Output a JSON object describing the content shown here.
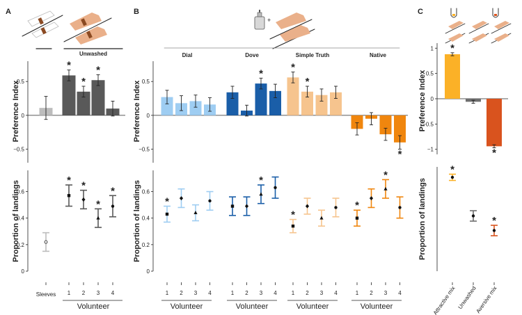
{
  "colors": {
    "sleeves": "#bdbdbd",
    "unwashed": "#595959",
    "dial": "#9ecdf2",
    "dove": "#1a5ea8",
    "simple_truth": "#f6c48e",
    "native": "#f0860e",
    "attractive": "#fbb127",
    "neutral": "#6e6e6e",
    "aversive": "#d9531e",
    "skin": "#eab08a"
  },
  "panels": {
    "A": {
      "label": "A",
      "header": "Unwashed",
      "xlabel": "Volunteer",
      "sleeves_label": "Sleeves"
    },
    "B": {
      "label": "B",
      "xlabel": "Volunteer"
    },
    "C": {
      "label": "C"
    }
  },
  "illustration": {
    "plus": "+"
  },
  "chart_data": [
    {
      "id": "A-top",
      "type": "bar",
      "panel": "A",
      "ylabel": "Preference Index",
      "ylim": [
        -0.7,
        0.8
      ],
      "yticks": [
        -0.5,
        0,
        0.5
      ],
      "tick_labels": [
        "−0.5",
        "0",
        "0.5"
      ],
      "bars": [
        {
          "label": "Sleeves",
          "value": 0.11,
          "err": 0.17,
          "star": false,
          "color": "sleeves"
        },
        {
          "label": "1",
          "value": 0.59,
          "err": 0.08,
          "star": true,
          "color": "unwashed"
        },
        {
          "label": "2",
          "value": 0.35,
          "err": 0.08,
          "star": true,
          "color": "unwashed"
        },
        {
          "label": "3",
          "value": 0.52,
          "err": 0.08,
          "star": true,
          "color": "unwashed"
        },
        {
          "label": "4",
          "value": 0.1,
          "err": 0.11,
          "star": false,
          "color": "unwashed"
        }
      ]
    },
    {
      "id": "A-bottom",
      "type": "errorbar",
      "panel": "A",
      "ylabel": "Proportion of landings",
      "ylim": [
        0,
        0.76
      ],
      "yticks": [
        0,
        0.2,
        0.4,
        0.6
      ],
      "tick_labels": [
        "0",
        "0.2",
        "0.4",
        "0.6"
      ],
      "points": [
        {
          "label": "Sleeves",
          "value": 0.22,
          "err": 0.07,
          "star": false,
          "color": "sleeves",
          "marker": "circle-open"
        },
        {
          "label": "1",
          "value": 0.57,
          "err": 0.08,
          "star": true,
          "color": "unwashed",
          "marker": "square"
        },
        {
          "label": "2",
          "value": 0.54,
          "err": 0.07,
          "star": true,
          "color": "unwashed",
          "marker": "diamond"
        },
        {
          "label": "3",
          "value": 0.4,
          "err": 0.07,
          "star": true,
          "color": "unwashed",
          "marker": "triangle"
        },
        {
          "label": "4",
          "value": 0.49,
          "err": 0.08,
          "star": true,
          "color": "unwashed",
          "marker": "circle"
        }
      ]
    },
    {
      "id": "B-top",
      "type": "bar",
      "panel": "B",
      "ylabel": "Preference Index",
      "ylim": [
        -0.7,
        0.8
      ],
      "yticks": [
        -0.5,
        0,
        0.5
      ],
      "tick_labels": [
        "−0.5",
        "0",
        "0.5"
      ],
      "groups": [
        {
          "name": "Dial",
          "color": "dial",
          "values": [
            0.27,
            0.18,
            0.21,
            0.16
          ],
          "errs": [
            0.1,
            0.11,
            0.09,
            0.1
          ],
          "stars": [
            false,
            false,
            false,
            false
          ]
        },
        {
          "name": "Dove",
          "color": "dove",
          "values": [
            0.34,
            0.07,
            0.47,
            0.36
          ],
          "errs": [
            0.09,
            0.08,
            0.08,
            0.1
          ],
          "stars": [
            false,
            false,
            true,
            false
          ]
        },
        {
          "name": "Simple Truth",
          "color": "simple_truth",
          "values": [
            0.56,
            0.35,
            0.3,
            0.34
          ],
          "errs": [
            0.08,
            0.08,
            0.09,
            0.09
          ],
          "stars": [
            true,
            true,
            false,
            false
          ]
        },
        {
          "name": "Native",
          "color": "native",
          "values": [
            -0.2,
            -0.05,
            -0.28,
            -0.4
          ],
          "errs": [
            0.09,
            0.09,
            0.09,
            0.1
          ],
          "stars": [
            false,
            false,
            false,
            true
          ]
        }
      ]
    },
    {
      "id": "B-bottom",
      "type": "errorbar",
      "panel": "B",
      "ylabel": "Proportion of landings",
      "ylim": [
        0,
        0.76
      ],
      "yticks": [
        0,
        0.2,
        0.4,
        0.6
      ],
      "tick_labels": [
        "0",
        "0.2",
        "0.4",
        "0.6"
      ],
      "markers": [
        "square",
        "diamond",
        "triangle",
        "circle"
      ],
      "volunteer_labels": [
        "1",
        "2",
        "3",
        "4"
      ],
      "groups": [
        {
          "name": "Dial",
          "color": "dial",
          "values": [
            0.43,
            0.55,
            0.44,
            0.53
          ],
          "errs": [
            0.06,
            0.07,
            0.06,
            0.07
          ],
          "stars": [
            true,
            false,
            false,
            false
          ]
        },
        {
          "name": "Dove",
          "color": "dove",
          "values": [
            0.49,
            0.49,
            0.58,
            0.63
          ],
          "errs": [
            0.07,
            0.07,
            0.07,
            0.08
          ],
          "stars": [
            false,
            false,
            true,
            false
          ]
        },
        {
          "name": "Simple Truth",
          "color": "simple_truth",
          "values": [
            0.34,
            0.49,
            0.4,
            0.48
          ],
          "errs": [
            0.05,
            0.06,
            0.06,
            0.07
          ],
          "stars": [
            true,
            false,
            false,
            false
          ]
        },
        {
          "name": "Native",
          "color": "native",
          "values": [
            0.4,
            0.55,
            0.62,
            0.48
          ],
          "errs": [
            0.06,
            0.07,
            0.07,
            0.08
          ],
          "stars": [
            true,
            false,
            true,
            false
          ]
        }
      ]
    },
    {
      "id": "C-top",
      "type": "bar",
      "panel": "C",
      "ylabel": "Preference Index",
      "ylim": [
        -1.1,
        1.1
      ],
      "yticks": [
        -1,
        -0.5,
        0,
        0.5,
        1
      ],
      "tick_labels": [
        "−1",
        "−0.5",
        "0",
        "0.5",
        "1"
      ],
      "bars": [
        {
          "label": "Attractive mix",
          "value": 0.88,
          "err": 0.03,
          "star": true,
          "color": "attractive"
        },
        {
          "label": "Unwashed",
          "value": -0.06,
          "err": 0.03,
          "star": false,
          "color": "neutral"
        },
        {
          "label": "Aversive mix",
          "value": -0.94,
          "err": 0.03,
          "star": true,
          "color": "aversive"
        }
      ]
    },
    {
      "id": "C-bottom",
      "type": "errorbar",
      "panel": "C",
      "ylabel": "Proportion of landings",
      "ylim": [
        0,
        1.0
      ],
      "yticks": [],
      "tick_labels": [],
      "points": [
        {
          "label": "Attractive mix",
          "value": 0.9,
          "err": 0.03,
          "star": true,
          "color": "attractive",
          "marker": "circle"
        },
        {
          "label": "Unwashed",
          "value": 0.53,
          "err": 0.05,
          "star": false,
          "color": "neutral",
          "marker": "circle"
        },
        {
          "label": "Aversive mix",
          "value": 0.39,
          "err": 0.05,
          "star": true,
          "color": "aversive",
          "marker": "circle"
        }
      ]
    }
  ]
}
